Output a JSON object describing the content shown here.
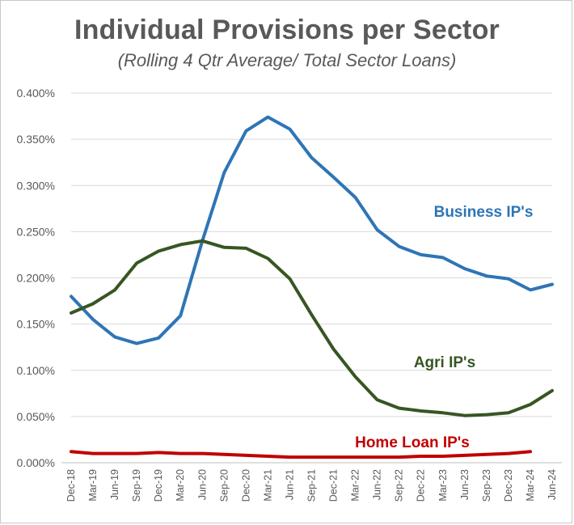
{
  "chart_data": {
    "type": "line",
    "title": "Individual Provisions per Sector",
    "subtitle": "(Rolling 4 Qtr Average/ Total Sector Loans)",
    "xlabel": "",
    "ylabel": "",
    "ylim": [
      0,
      0.004
    ],
    "yticks": [
      "0.000%",
      "0.050%",
      "0.100%",
      "0.150%",
      "0.200%",
      "0.250%",
      "0.300%",
      "0.350%",
      "0.400%"
    ],
    "grid": "horizontal",
    "legend": "inline-labels",
    "categories": [
      "Dec-18",
      "Mar-19",
      "Jun-19",
      "Sep-19",
      "Dec-19",
      "Mar-20",
      "Jun-20",
      "Sep-20",
      "Dec-20",
      "Mar-21",
      "Jun-21",
      "Sep-21",
      "Dec-21",
      "Mar-22",
      "Jun-22",
      "Sep-22",
      "Dec-22",
      "Mar-23",
      "Jun-23",
      "Sep-23",
      "Dec-23",
      "Mar-24",
      "Jun-24"
    ],
    "series": [
      {
        "name": "Business IP's",
        "color": "#2e75b6",
        "values": [
          0.0018,
          0.00155,
          0.00136,
          0.00129,
          0.00135,
          0.00159,
          0.0024,
          0.00314,
          0.00359,
          0.00374,
          0.00361,
          0.0033,
          0.00309,
          0.00287,
          0.00252,
          0.00234,
          0.00225,
          0.00222,
          0.0021,
          0.00202,
          0.00199,
          0.00187,
          0.00193
        ]
      },
      {
        "name": "Agri IP's",
        "color": "#375623",
        "values": [
          0.00162,
          0.00172,
          0.00187,
          0.00216,
          0.00229,
          0.00236,
          0.0024,
          0.00233,
          0.00232,
          0.00221,
          0.00199,
          0.0016,
          0.00123,
          0.00093,
          0.00068,
          0.00059,
          0.00056,
          0.00054,
          0.00051,
          0.00052,
          0.00054,
          0.00063,
          0.00078
        ]
      },
      {
        "name": "Home Loan IP's",
        "color": "#c00000",
        "values": [
          0.00012,
          0.0001,
          0.0001,
          0.0001,
          0.00011,
          0.0001,
          0.0001,
          9e-05,
          8e-05,
          7e-05,
          6e-05,
          6e-05,
          6e-05,
          6e-05,
          6e-05,
          6e-05,
          7e-05,
          7e-05,
          8e-05,
          9e-05,
          0.0001,
          0.00012,
          null
        ]
      }
    ]
  }
}
